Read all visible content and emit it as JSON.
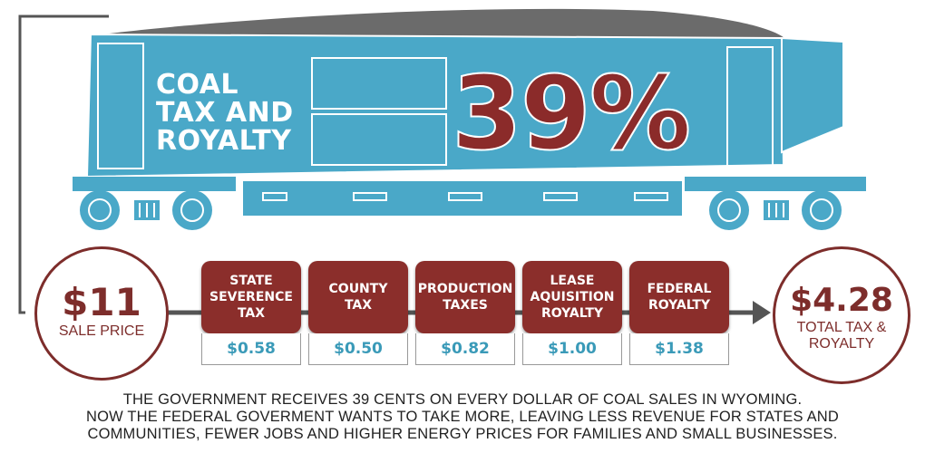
{
  "train": {
    "label_lines": [
      "COAL",
      "TAX AND",
      "ROYALTY"
    ],
    "percent": "39%"
  },
  "sale_price": {
    "amount": "$11",
    "label": "SALE PRICE"
  },
  "total": {
    "amount": "$4.28",
    "label_line1": "TOTAL TAX &",
    "label_line2": "ROYALTY"
  },
  "taxes": [
    {
      "name": "STATE\nSEVERENCE\nTAX",
      "value": "$0.58"
    },
    {
      "name": "COUNTY\nTAX",
      "value": "$0.50"
    },
    {
      "name": "PRODUCTION\nTAXES",
      "value": "$0.82"
    },
    {
      "name": "LEASE\nAQUISITION\nROYALTY",
      "value": "$1.00"
    },
    {
      "name": "FEDERAL\nROYALTY",
      "value": "$1.38"
    }
  ],
  "caption_lines": [
    "THE GOVERNMENT RECEIVES 39 CENTS ON EVERY DOLLAR OF COAL SALES IN WYOMING.",
    "NOW THE FEDERAL GOVERMENT WANTS TO TAKE MORE, LEAVING LESS REVENUE FOR STATES AND",
    "COMMUNITIES, FEWER JOBS AND HIGHER ENERGY PRICES FOR FAMILIES AND SMALL BUSINESSES."
  ],
  "colors": {
    "train_blue": "#4aa8c8",
    "maroon": "#8b2e2b",
    "value_blue": "#3a9ab8"
  }
}
